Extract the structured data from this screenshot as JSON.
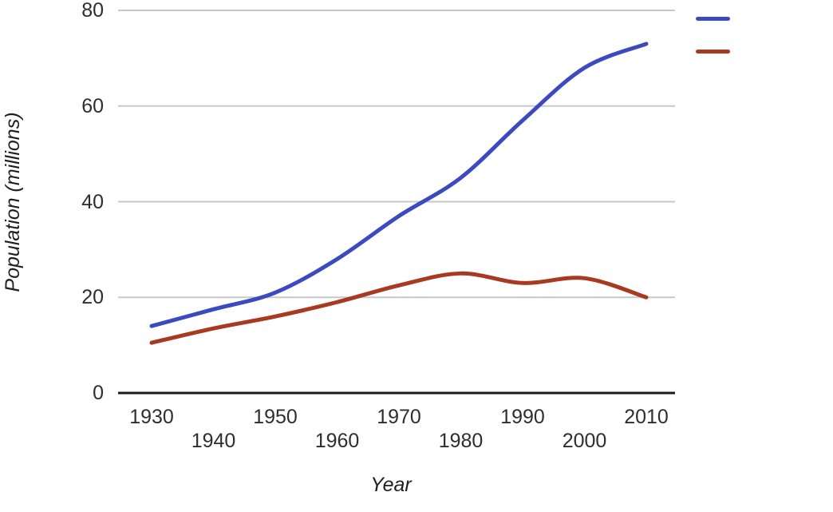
{
  "chart_data": {
    "type": "line",
    "title": "",
    "xlabel": "Year",
    "ylabel": "Population (millions)",
    "categories": [
      "1930",
      "1940",
      "1950",
      "1960",
      "1970",
      "1980",
      "1990",
      "2000",
      "2010"
    ],
    "y_ticks": [
      0,
      20,
      40,
      60,
      80
    ],
    "ylim": [
      0,
      80
    ],
    "grid": true,
    "legend": {
      "position": "top-right",
      "labels_visible": false
    },
    "series": [
      {
        "color": "#3c4ac0",
        "values": [
          14,
          17.5,
          21,
          28,
          37,
          45,
          57,
          68,
          73
        ]
      },
      {
        "color": "#a83a22",
        "values": [
          10.5,
          13.5,
          16,
          19,
          22.5,
          25,
          23,
          24,
          20
        ]
      }
    ],
    "colors": {
      "gridline": "#c8c8c8",
      "axis": "#1c1c1c",
      "text": "#2e2e2e"
    }
  }
}
